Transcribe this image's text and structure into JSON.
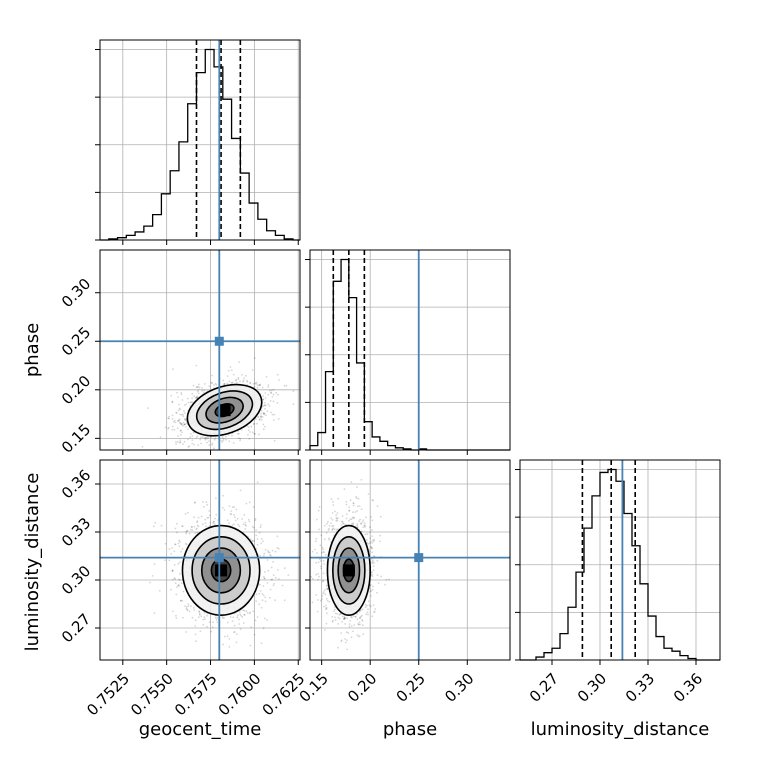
{
  "chart_data": {
    "type": "corner",
    "parameters": [
      "geocent_time",
      "phase",
      "luminosity_distance"
    ],
    "truths": {
      "geocent_time": 0.758,
      "phase": 0.25,
      "luminosity_distance": 0.314
    },
    "truth_color": "#4682b4",
    "quantile_lines": {
      "geocent_time": [
        0.7567,
        0.7581,
        0.7592
      ],
      "phase": [
        0.162,
        0.178,
        0.194
      ],
      "luminosity_distance": [
        0.289,
        0.307,
        0.322
      ]
    },
    "axes": {
      "geocent_time": {
        "range": [
          0.7512,
          0.7626
        ],
        "ticks": [
          0.7525,
          0.755,
          0.7575,
          0.76,
          0.7625
        ],
        "tick_labels": [
          "0.7525",
          "0.7550",
          "0.7575",
          "0.7600",
          "0.7625"
        ]
      },
      "phase": {
        "range": [
          0.138,
          0.344
        ],
        "ticks": [
          0.15,
          0.2,
          0.25,
          0.3
        ],
        "tick_labels": [
          "0.15",
          "0.20",
          "0.25",
          "0.30"
        ]
      },
      "luminosity_distance": {
        "range": [
          0.25,
          0.375
        ],
        "ticks": [
          0.27,
          0.3,
          0.33,
          0.36
        ],
        "tick_labels": [
          "0.27",
          "0.30",
          "0.33",
          "0.36"
        ]
      }
    },
    "histograms": {
      "geocent_time": {
        "edges": [
          0.7512,
          0.7517,
          0.7522,
          0.7527,
          0.7532,
          0.7537,
          0.7542,
          0.7547,
          0.7552,
          0.7557,
          0.7562,
          0.7567,
          0.7572,
          0.7577,
          0.7582,
          0.7587,
          0.7592,
          0.7597,
          0.7602,
          0.7607,
          0.7612,
          0.7617,
          0.7622,
          0.7626
        ],
        "counts": [
          0,
          1,
          2,
          4,
          7,
          12,
          22,
          40,
          60,
          85,
          118,
          145,
          165,
          150,
          122,
          88,
          58,
          32,
          18,
          8,
          4,
          1,
          0
        ]
      },
      "phase": {
        "edges": [
          0.138,
          0.146,
          0.154,
          0.162,
          0.17,
          0.178,
          0.186,
          0.194,
          0.202,
          0.21,
          0.218,
          0.226,
          0.234,
          0.242,
          0.25,
          0.258,
          0.266,
          0.274,
          0.282,
          0.29,
          0.298,
          0.306,
          0.314,
          0.322,
          0.33,
          0.338,
          0.344
        ],
        "counts": [
          4,
          16,
          72,
          155,
          175,
          140,
          80,
          26,
          12,
          8,
          4,
          2,
          1,
          0,
          1,
          0,
          0,
          0,
          0,
          0,
          0,
          0,
          0,
          0,
          0,
          0
        ]
      },
      "luminosity_distance": {
        "edges": [
          0.25,
          0.255,
          0.26,
          0.265,
          0.27,
          0.275,
          0.28,
          0.285,
          0.29,
          0.295,
          0.3,
          0.305,
          0.31,
          0.315,
          0.32,
          0.325,
          0.33,
          0.335,
          0.34,
          0.345,
          0.35,
          0.355,
          0.36,
          0.365,
          0.37,
          0.375
        ],
        "counts": [
          0,
          0,
          2,
          5,
          8,
          18,
          36,
          60,
          90,
          112,
          128,
          130,
          122,
          100,
          78,
          52,
          30,
          16,
          8,
          6,
          3,
          1,
          0,
          0,
          0
        ]
      }
    },
    "joint_2d": [
      {
        "x": "geocent_time",
        "y": "phase",
        "center": [
          0.7583,
          0.179
        ],
        "sigma": [
          0.0011,
          0.012
        ],
        "rotation_deg": -20
      },
      {
        "x": "geocent_time",
        "y": "luminosity_distance",
        "center": [
          0.7581,
          0.306
        ],
        "sigma": [
          0.0011,
          0.014
        ],
        "rotation_deg": 0
      },
      {
        "x": "phase",
        "y": "luminosity_distance",
        "center": [
          0.178,
          0.306
        ],
        "sigma": [
          0.011,
          0.014
        ],
        "rotation_deg": 0
      }
    ],
    "contour_levels_sigma": [
      0.5,
      1.0,
      1.5,
      2.0
    ],
    "grid": true,
    "x_labels": [
      "geocent_time",
      "phase",
      "luminosity_distance"
    ],
    "y_labels": [
      "",
      "phase",
      "luminosity_distance"
    ]
  }
}
